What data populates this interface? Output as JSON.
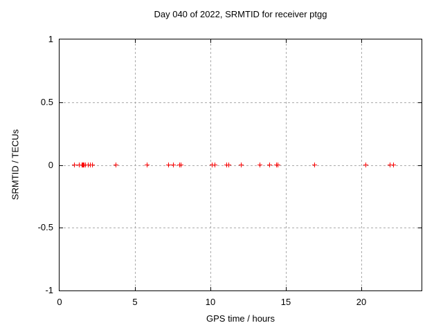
{
  "chart_data": {
    "type": "scatter",
    "title": "Day 040 of 2022, SRMTID for receiver ptgg",
    "xlabel": "GPS time / hours",
    "ylabel": "SRMTID / TECUs",
    "xlim": [
      0,
      24
    ],
    "ylim": [
      -1,
      1
    ],
    "x_ticks": [
      0,
      5,
      10,
      15,
      20
    ],
    "x_tick_labels": [
      "0",
      "5",
      "10",
      "15",
      "20"
    ],
    "y_ticks": [
      1,
      0.5,
      0,
      -0.5,
      -1
    ],
    "y_tick_labels": [
      "1",
      "0.5",
      "0",
      "-0.5",
      "-1"
    ],
    "grid": true,
    "legend": "none",
    "marker": "plus",
    "marker_color": "#ff0000",
    "grid_color": "#aaaaaa",
    "series": [
      {
        "name": "SRMTID",
        "x": [
          1.0,
          1.3,
          1.5,
          1.55,
          1.6,
          1.65,
          1.7,
          1.9,
          2.05,
          2.2,
          3.75,
          5.8,
          7.25,
          7.55,
          7.95,
          8.05,
          10.1,
          10.3,
          11.1,
          11.2,
          12.05,
          13.3,
          13.95,
          14.4,
          14.5,
          16.9,
          20.3,
          21.9,
          22.15
        ],
        "y": [
          0,
          0,
          0,
          0,
          0,
          0,
          0,
          0,
          0,
          0,
          0,
          0,
          0,
          0,
          0,
          0,
          0,
          0,
          0,
          0,
          0,
          0,
          0,
          0,
          0,
          0,
          0,
          0,
          0
        ]
      }
    ]
  }
}
